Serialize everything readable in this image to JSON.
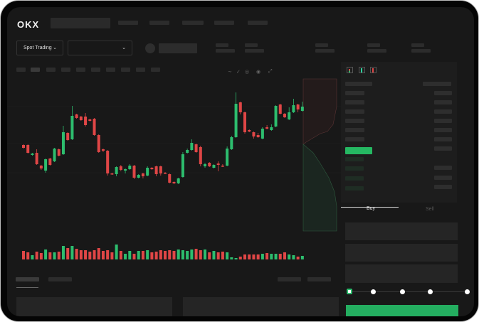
{
  "brand": {
    "logo": "OKX"
  },
  "toolbar": {
    "market_selector": "Spot Trading"
  },
  "trade_form": {
    "buy_tab": "Buy",
    "sell_tab": "Sell",
    "leverage_steps": [
      0,
      25,
      50,
      75,
      100
    ],
    "selected_step": 0
  },
  "colors": {
    "up": "#2dbd6e",
    "down": "#e04646",
    "background": "#181818",
    "buy_button": "#24ae60"
  },
  "toolbar_icons": [
    "bars-icon",
    "line-icon",
    "ruler-icon",
    "camera-icon",
    "settings-icon",
    "fullscreen-icon"
  ],
  "chart_data": {
    "type": "candlestick",
    "candles": [
      [
        97,
        93,
        98,
        92
      ],
      [
        97,
        86,
        98,
        85
      ],
      [
        83,
        85,
        86,
        82
      ],
      [
        86,
        70,
        91,
        69
      ],
      [
        68,
        64,
        69,
        62
      ],
      [
        61,
        77,
        78,
        58
      ],
      [
        78,
        69,
        79,
        68
      ],
      [
        74,
        92,
        93,
        73
      ],
      [
        91,
        82,
        92,
        81
      ],
      [
        84,
        115,
        124,
        83
      ],
      [
        114,
        104,
        115,
        103
      ],
      [
        105,
        138,
        152,
        104
      ],
      [
        140,
        135,
        141,
        134
      ],
      [
        137,
        132,
        138,
        131
      ],
      [
        137,
        125,
        142,
        123
      ],
      [
        133,
        131,
        134,
        130
      ],
      [
        134,
        111,
        135,
        110
      ],
      [
        111,
        87,
        112,
        86
      ],
      [
        91,
        89,
        92,
        87
      ],
      [
        89,
        57,
        90,
        54
      ],
      [
        57,
        56,
        58,
        55
      ],
      [
        56,
        66,
        67,
        53
      ],
      [
        67,
        62,
        69,
        60
      ],
      [
        61,
        63,
        64,
        57
      ],
      [
        63,
        68,
        70,
        62
      ],
      [
        68,
        51,
        69,
        49
      ],
      [
        51,
        55,
        56,
        50
      ],
      [
        57,
        53,
        58,
        50
      ],
      [
        54,
        65,
        67,
        53
      ],
      [
        65,
        63,
        66,
        62
      ],
      [
        67,
        56,
        68,
        53
      ],
      [
        67,
        57,
        68,
        54
      ],
      [
        58,
        57,
        59,
        56
      ],
      [
        56,
        44,
        57,
        43
      ],
      [
        45,
        43,
        46,
        42
      ],
      [
        43,
        50,
        51,
        42
      ],
      [
        52,
        84,
        87,
        51
      ],
      [
        86,
        90,
        92,
        85
      ],
      [
        90,
        100,
        105,
        89
      ],
      [
        98,
        87,
        99,
        86
      ],
      [
        94,
        70,
        96,
        67
      ],
      [
        67,
        70,
        72,
        65
      ],
      [
        72,
        67,
        73,
        66
      ],
      [
        65,
        69,
        70,
        64
      ],
      [
        71,
        69,
        74,
        60
      ],
      [
        68,
        67,
        70,
        66
      ],
      [
        68,
        92,
        95,
        67
      ],
      [
        91,
        108,
        110,
        90
      ],
      [
        108,
        155,
        171,
        107
      ],
      [
        157,
        143,
        158,
        140
      ],
      [
        143,
        115,
        144,
        113
      ],
      [
        118,
        116,
        119,
        115
      ],
      [
        115,
        109,
        116,
        106
      ],
      [
        111,
        108,
        114,
        107
      ],
      [
        106,
        120,
        122,
        105
      ],
      [
        122,
        120,
        125,
        119
      ],
      [
        118,
        122,
        126,
        117
      ],
      [
        123,
        152,
        153,
        122
      ],
      [
        154,
        141,
        155,
        140
      ],
      [
        141,
        136,
        142,
        135
      ],
      [
        133,
        143,
        150,
        132
      ],
      [
        143,
        153,
        162,
        142
      ],
      [
        154,
        147,
        155,
        143
      ],
      [
        145,
        151,
        158,
        144
      ]
    ],
    "volumes": [
      12,
      10,
      6,
      11,
      9,
      14,
      10,
      10,
      11,
      19,
      16,
      19,
      15,
      13,
      13,
      11,
      13,
      16,
      12,
      13,
      10,
      21,
      12,
      8,
      12,
      8,
      12,
      12,
      13,
      10,
      11,
      13,
      12,
      13,
      12,
      14,
      13,
      12,
      14,
      15,
      13,
      14,
      10,
      12,
      10,
      11,
      10,
      3,
      2,
      4,
      7,
      7,
      7,
      7,
      8,
      9,
      8,
      8,
      8,
      10,
      7,
      6,
      4,
      5
    ]
  }
}
